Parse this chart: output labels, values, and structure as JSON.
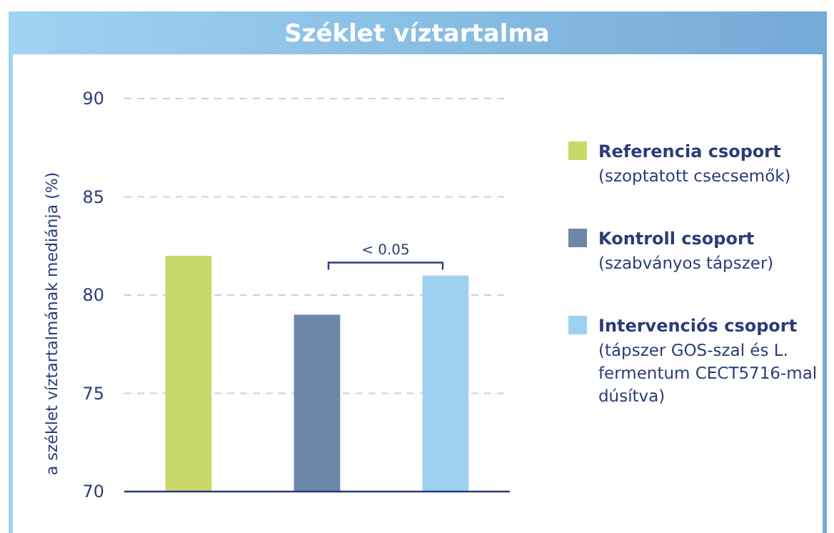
{
  "chart_data": {
    "type": "bar",
    "title": "Széklet víztartalma",
    "ylabel": "a széklet víztartalmának mediánja (%)",
    "categories": [
      null,
      null,
      null
    ],
    "series": [
      {
        "name": "Referencia csoport (szoptatott csecsemők)",
        "color": "#c8d96a",
        "values": [
          82,
          null,
          null
        ]
      },
      {
        "name": "Kontroll csoport (szabványos tápszer)",
        "color": "#6c87a8",
        "values": [
          null,
          79,
          null
        ]
      },
      {
        "name": "Intervenciós csoport (tápszer GOS-szal és L. fermentum CECT5716-mal dúsítva)",
        "color": "#9ed1f0",
        "values": [
          null,
          null,
          81
        ]
      }
    ],
    "ylim": [
      70,
      90
    ],
    "yticks": [
      70,
      75,
      80,
      85,
      90
    ],
    "grid": "y",
    "legend": "right",
    "annotations": [
      "< 0.05"
    ]
  }
}
